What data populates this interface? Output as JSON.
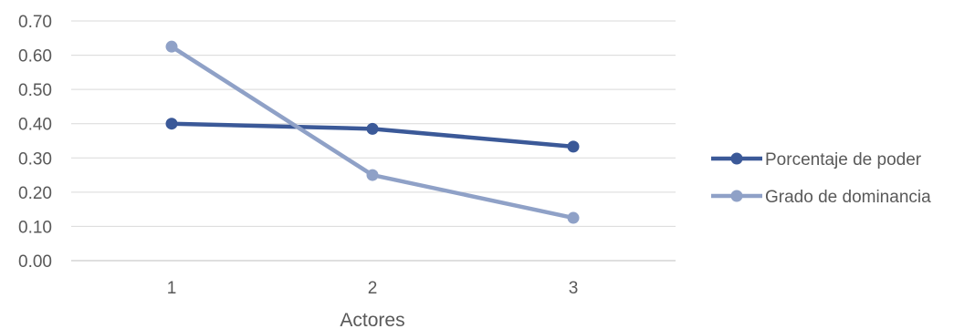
{
  "chart_data": {
    "type": "line",
    "title": "",
    "xlabel": "Actores",
    "ylabel": "",
    "categories": [
      "1",
      "2",
      "3"
    ],
    "ylim": [
      0,
      0.7
    ],
    "yticks": [
      "0.00",
      "0.10",
      "0.20",
      "0.30",
      "0.40",
      "0.50",
      "0.60",
      "0.70"
    ],
    "grid": true,
    "legend_position": "right",
    "series": [
      {
        "name": "Porcentaje de poder",
        "values": [
          0.4,
          0.385,
          0.333
        ],
        "color": "#3B5998"
      },
      {
        "name": "Grado de dominancia",
        "values": [
          0.625,
          0.25,
          0.125
        ],
        "color": "#8FA1C7"
      }
    ]
  }
}
